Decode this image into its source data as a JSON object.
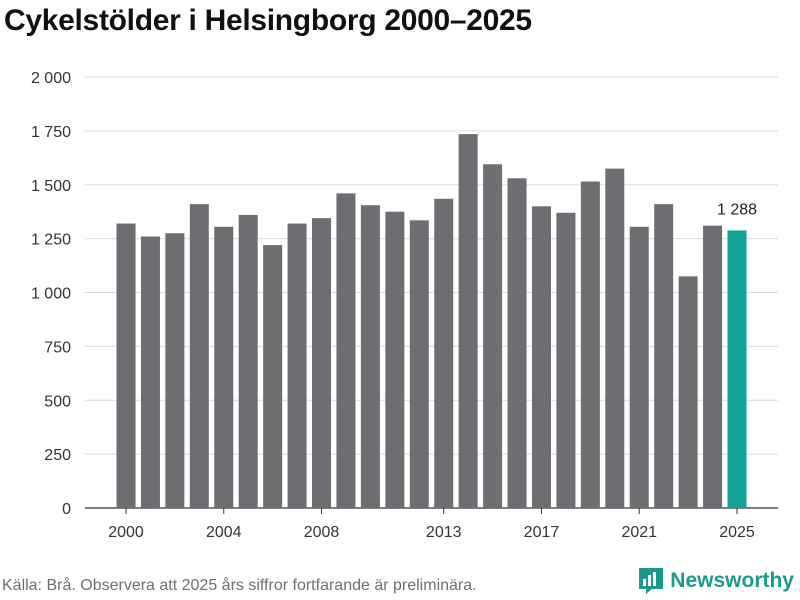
{
  "title": "Cykelstölder i Helsingborg 2000–2025",
  "source": "Källa: Brå. Observera att 2025 års siffror fortfarande är preliminära.",
  "brand": {
    "name": "Newsworthy",
    "icon": "bar-chart-logo-icon"
  },
  "colors": {
    "bar": "#6e6d72",
    "highlight": "#12a396",
    "grid": "#dcdcdc",
    "brand": "#1a9a8c"
  },
  "chart_data": {
    "type": "bar",
    "title": "Cykelstölder i Helsingborg 2000–2025",
    "xlabel": "",
    "ylabel": "",
    "categories": [
      "2000",
      "2001",
      "2002",
      "2003",
      "2004",
      "2005",
      "2006",
      "2007",
      "2008",
      "2009",
      "2010",
      "2011",
      "2012",
      "2013",
      "2014",
      "2015",
      "2016",
      "2017",
      "2018",
      "2019",
      "2020",
      "2021",
      "2022",
      "2023",
      "2024",
      "2025"
    ],
    "values": [
      1320,
      1260,
      1275,
      1410,
      1305,
      1360,
      1220,
      1320,
      1345,
      1460,
      1405,
      1375,
      1335,
      1435,
      1735,
      1595,
      1530,
      1400,
      1370,
      1515,
      1575,
      1305,
      1410,
      1075,
      1310,
      1288
    ],
    "ylim": [
      0,
      2000
    ],
    "yticks": [
      0,
      250,
      500,
      750,
      1000,
      1250,
      1500,
      1750,
      2000
    ],
    "ytick_labels": [
      "0",
      "250",
      "500",
      "750",
      "1 000",
      "1 250",
      "1 500",
      "1 750",
      "2 000"
    ],
    "xticks": [
      "2000",
      "2004",
      "2008",
      "2013",
      "2017",
      "2021",
      "2025"
    ],
    "highlight_category": "2025",
    "data_labels": [
      {
        "category": "2025",
        "text": "1 288"
      }
    ],
    "grid": true
  }
}
